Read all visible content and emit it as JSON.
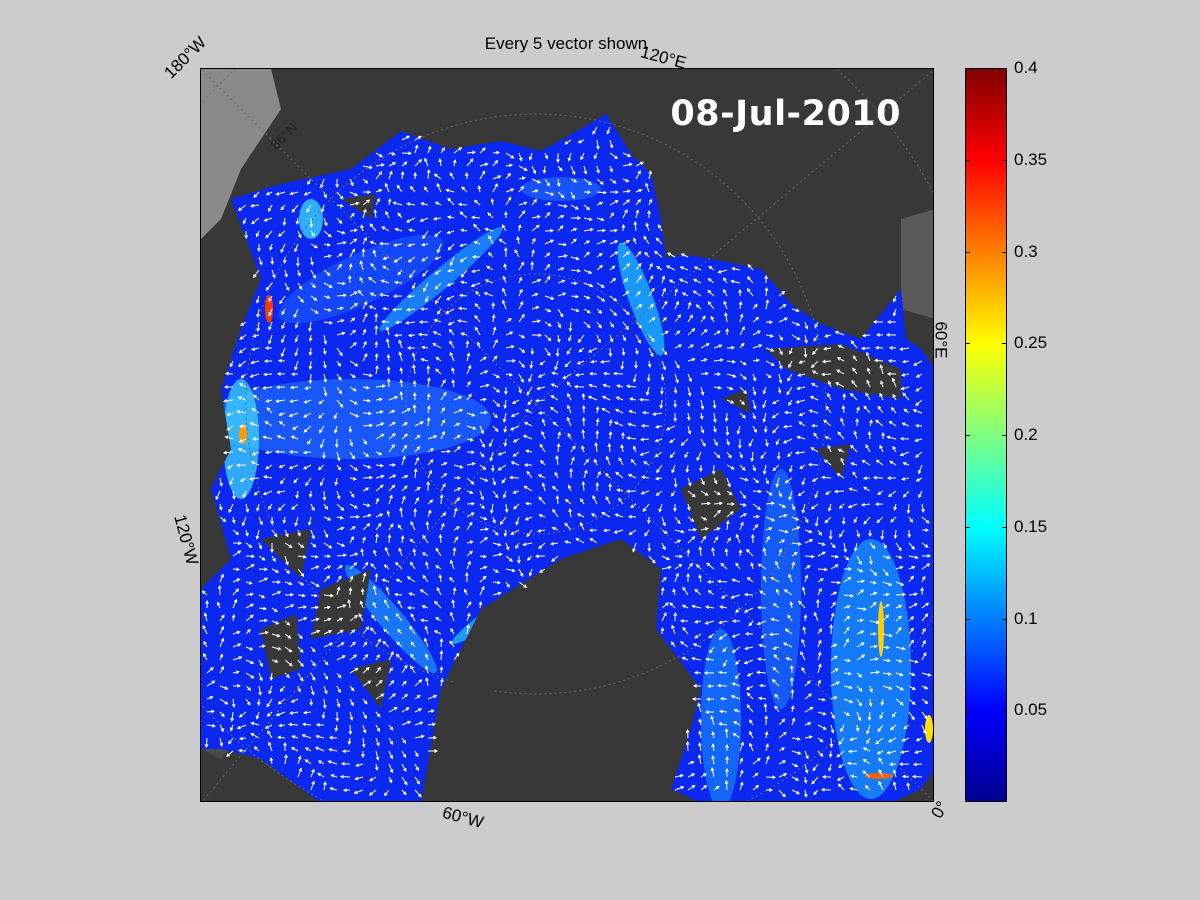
{
  "title": "Every 5 vector shown",
  "date_label": "08-Jul-2010",
  "labels": {
    "lon_180w": "180°W",
    "lon_120e": "120°E",
    "lon_60e": "60°E",
    "lon_120w": "120°W",
    "lon_60w": "60°W",
    "lon_0": "0°",
    "lat_86n": "86°N"
  },
  "colorbar": {
    "min": 0,
    "max": 0.4,
    "ticks": [
      "0.4",
      "0.35",
      "0.3",
      "0.25",
      "0.2",
      "0.15",
      "0.1",
      "0.05"
    ],
    "tick_values": [
      0.4,
      0.35,
      0.3,
      0.25,
      0.2,
      0.15,
      0.1,
      0.05
    ],
    "colormap": "jet"
  },
  "colors": {
    "figure_bg": "#cccccc",
    "land": "#383838",
    "ice_free_shelf": "#8a8a8a",
    "low_speed": "#0a28f0",
    "vector": "#ffffff",
    "date_text": "#ffffff"
  }
}
